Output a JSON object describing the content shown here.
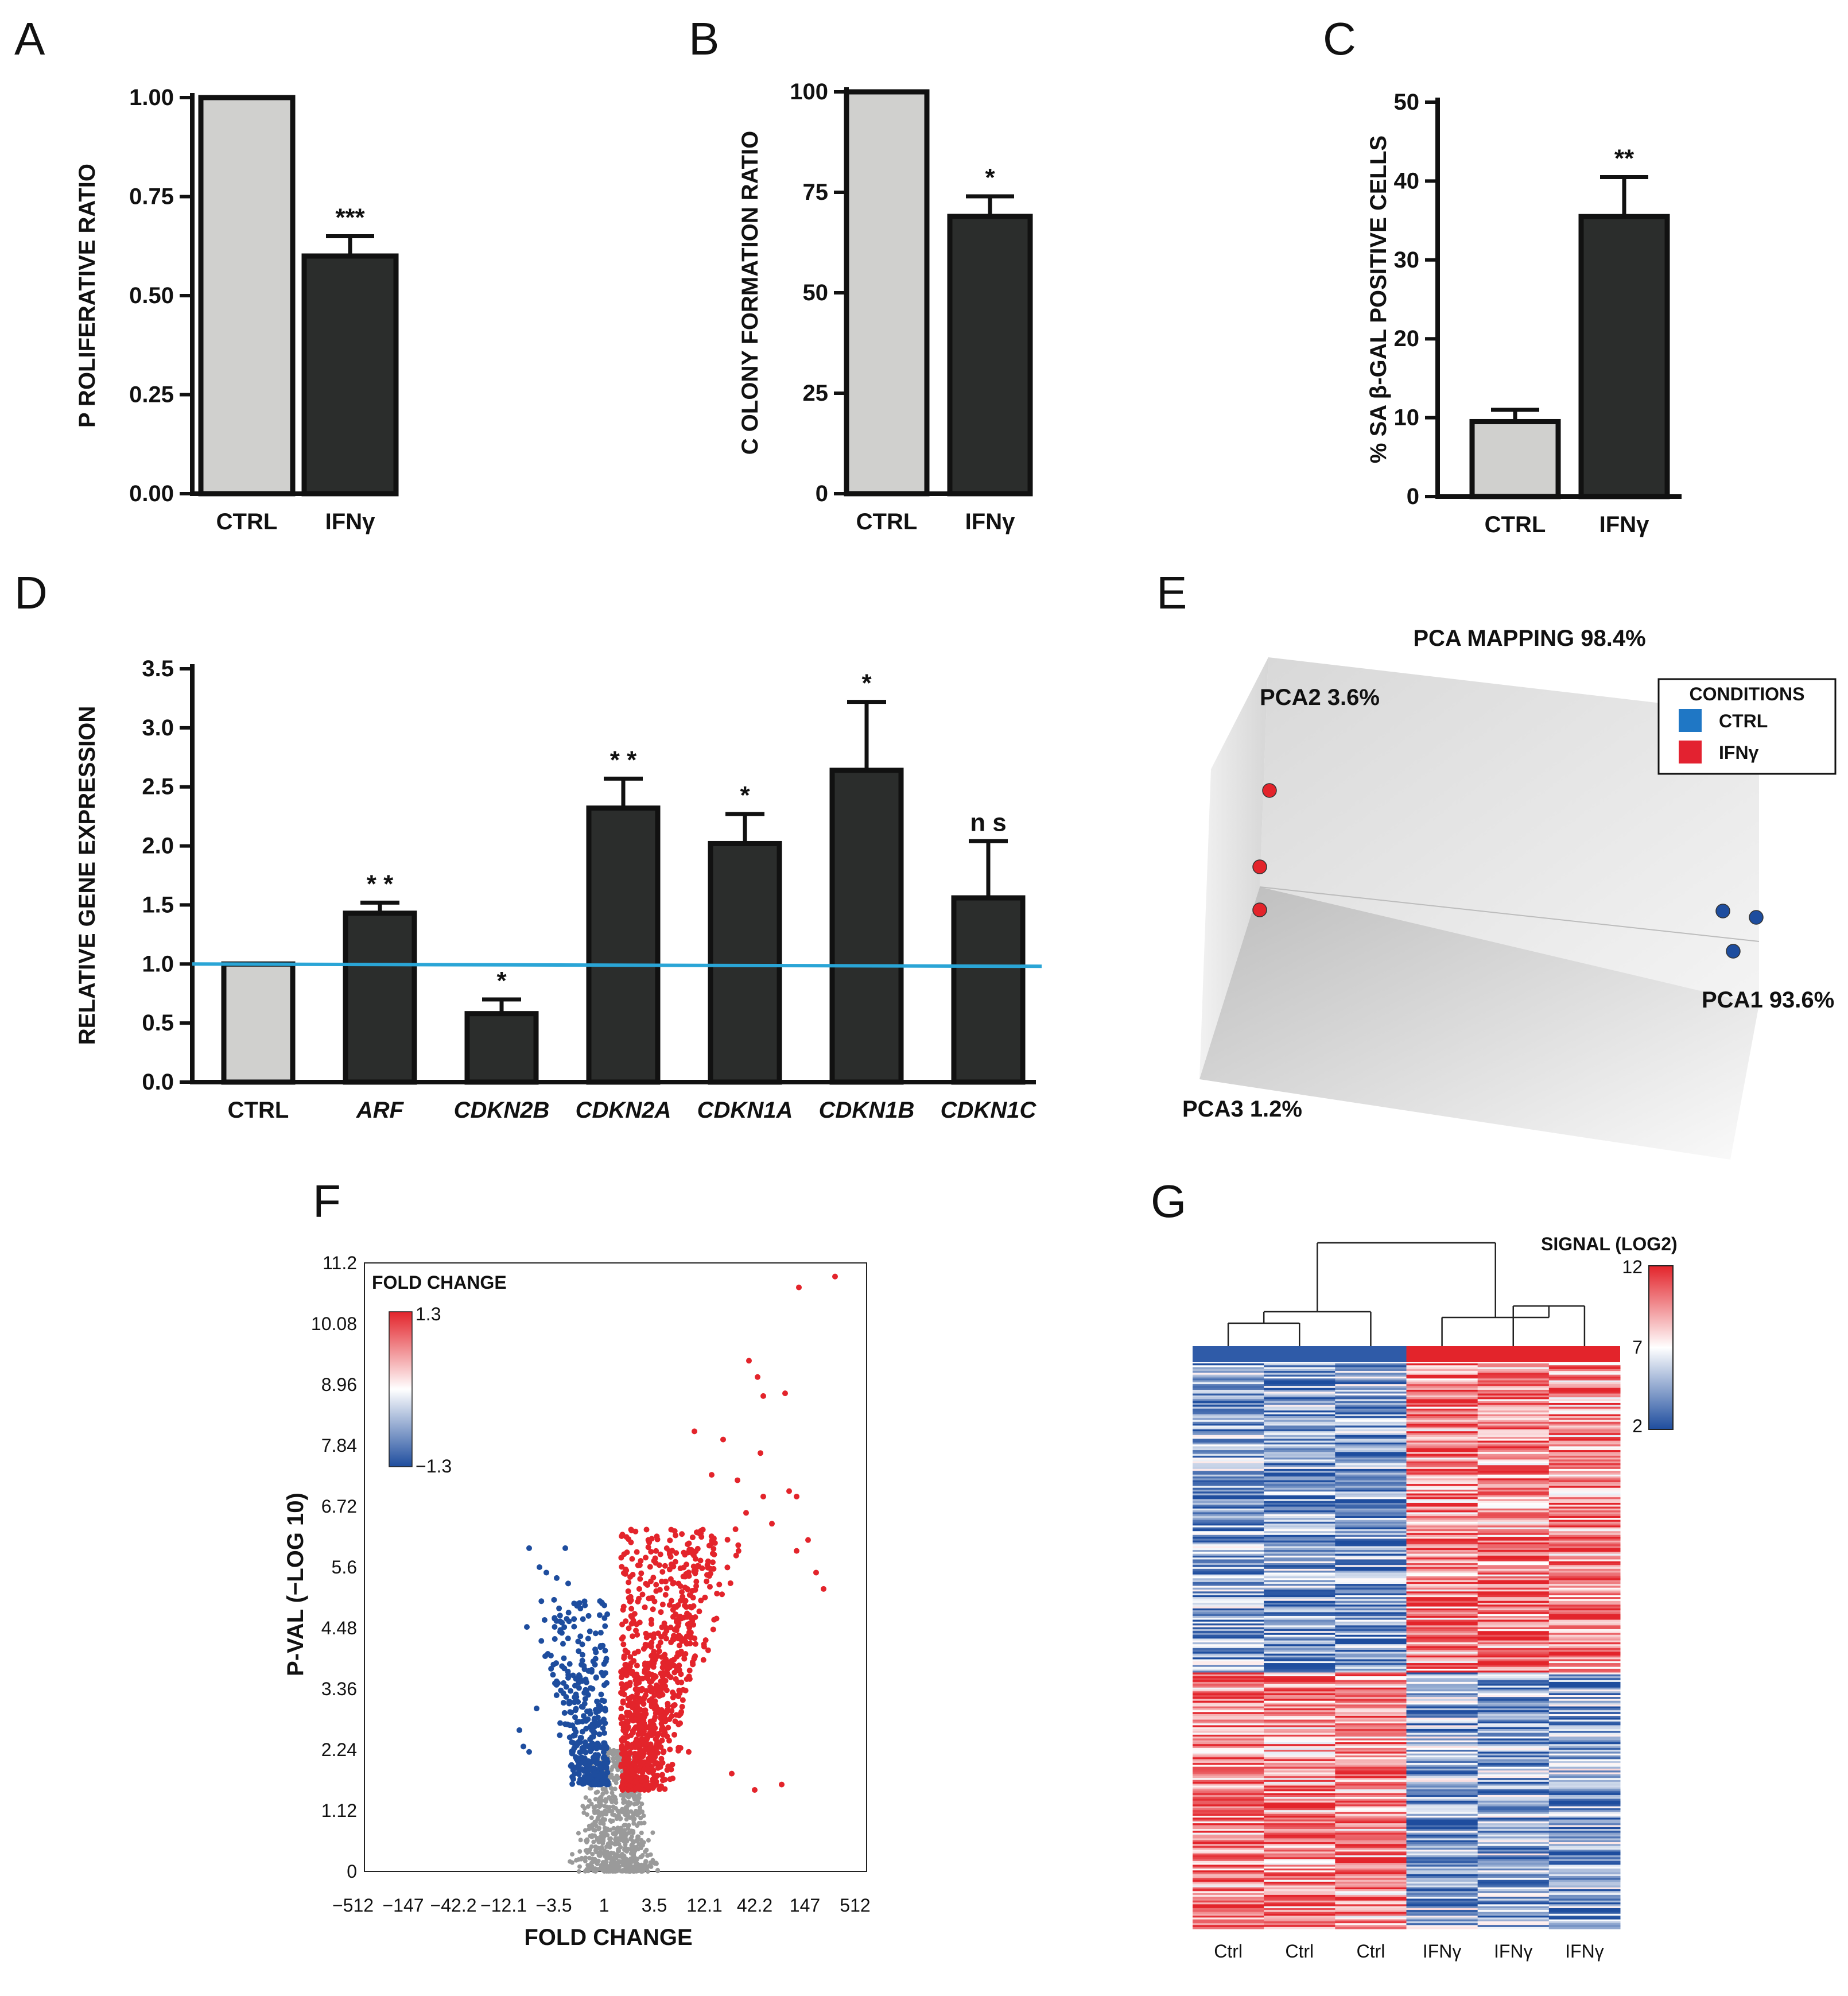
{
  "panels": [
    "A",
    "B",
    "C",
    "D",
    "E",
    "F",
    "G"
  ],
  "colors": {
    "ctrl_bar": "#d0d0ce",
    "ifn_bar": "#2b2d2c",
    "baseline": "#2aa5d6",
    "red": "#e3242b",
    "blue": "#1e4d9e",
    "grey": "#9a9a9a",
    "legend_blue": "#1f77c5",
    "legend_red": "#e32230"
  },
  "chart_data": [
    {
      "id": "A",
      "type": "bar",
      "categories": [
        "CTRL",
        "IFNγ"
      ],
      "values": [
        1.0,
        0.6
      ],
      "errors": [
        0,
        0.05
      ],
      "significance": [
        "",
        "***"
      ],
      "ylabel": "P ROLIFERATIVE  RATIO",
      "yticks": [
        "0.00",
        "0.25",
        "0.50",
        "0.75",
        "1.00"
      ],
      "ylim": [
        0,
        1
      ]
    },
    {
      "id": "B",
      "type": "bar",
      "categories": [
        "CTRL",
        "IFNγ"
      ],
      "values": [
        100,
        69
      ],
      "errors": [
        0,
        5
      ],
      "significance": [
        "",
        "*"
      ],
      "ylabel": "C OLONY  FORMATION  RATIO",
      "yticks": [
        "0",
        "25",
        "50",
        "75",
        "100"
      ],
      "ylim": [
        0,
        100
      ]
    },
    {
      "id": "C",
      "type": "bar",
      "categories": [
        "CTRL",
        "IFNγ"
      ],
      "values": [
        9.5,
        35.5
      ],
      "errors": [
        1.5,
        5
      ],
      "significance": [
        "",
        "**"
      ],
      "ylabel": "%  SA    β-GAL  POSITIVE  CELLS",
      "yticks": [
        "0",
        "10",
        "20",
        "30",
        "40",
        "50"
      ],
      "ylim": [
        0,
        50
      ]
    },
    {
      "id": "D",
      "type": "bar",
      "categories": [
        "CTRL",
        "ARF",
        "CDKN2B",
        "CDKN2A",
        "CDKN1A",
        "CDKN1B",
        "CDKN1C"
      ],
      "values": [
        1.0,
        1.43,
        0.58,
        2.32,
        2.02,
        2.64,
        1.56
      ],
      "errors": [
        0,
        0.09,
        0.12,
        0.25,
        0.25,
        0.58,
        0.48
      ],
      "significance": [
        "",
        "* *",
        "*",
        "* *",
        "*",
        "*",
        "n s"
      ],
      "ylabel": "RELATIVE GENE EXPRESSION",
      "yticks": [
        "0.0",
        "0.5",
        "1.0",
        "1.5",
        "2.0",
        "2.5",
        "3.0",
        "3.5"
      ],
      "ylim": [
        0,
        3.5
      ],
      "reference_line": 1.0
    },
    {
      "id": "E",
      "type": "scatter",
      "title": "PCA MAPPING 98.4%",
      "axes": [
        "PCA1 93.6%",
        "PCA2 3.6%",
        "PCA3 1.2%"
      ],
      "legend_title": "CONDITIONS",
      "legend": [
        "CTRL",
        "IFNγ"
      ],
      "series": [
        {
          "name": "CTRL",
          "points": [
            [
              0.95,
              0.02
            ],
            [
              0.98,
              0.0
            ],
            [
              0.97,
              -0.05
            ]
          ]
        },
        {
          "name": "IFNγ",
          "points": [
            [
              0.02,
              0.28
            ],
            [
              0.01,
              0.1
            ],
            [
              0.01,
              0.0
            ]
          ]
        }
      ]
    },
    {
      "id": "F",
      "type": "scatter",
      "xlabel": "FOLD CHANGE",
      "ylabel": "P-VAL (−LOG 10)",
      "xticks": [
        "−512",
        "−147",
        "−42.2",
        "−12.1",
        "−3.5",
        "1",
        "3.5",
        "12.1",
        "42.2",
        "147",
        "512"
      ],
      "yticks": [
        "0",
        "1.12",
        "2.24",
        "3.36",
        "4.48",
        "5.6",
        "6.72",
        "7.84",
        "8.96",
        "10.08",
        "11.2"
      ],
      "ylim": [
        0,
        11.2
      ],
      "legend_title": "FOLD CHANGE",
      "colorbar": [
        "1.3",
        "−1.3"
      ]
    },
    {
      "id": "G",
      "type": "heatmap",
      "columns": [
        "Ctrl",
        "Ctrl",
        "Ctrl",
        "IFNγ",
        "IFNγ",
        "IFNγ"
      ],
      "colorbar_title": "SIGNAL (LOG2)",
      "colorbar": [
        "12",
        "7",
        "2"
      ]
    }
  ]
}
